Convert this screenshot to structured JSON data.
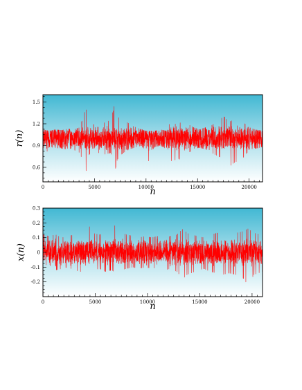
{
  "chart_data": [
    {
      "type": "line",
      "id": "top",
      "title": "",
      "xlabel": "n",
      "ylabel": "r(n)",
      "xlim": [
        0,
        21300
      ],
      "ylim": [
        0.4,
        1.6
      ],
      "x_ticks": [
        0,
        5000,
        10000,
        15000,
        20000
      ],
      "x_tick_labels": [
        "0",
        "5000",
        "10000",
        "15000",
        "20000"
      ],
      "y_ticks": [
        0.6,
        0.9,
        1.2,
        1.5
      ],
      "y_tick_labels": [
        "0.6",
        "0.9",
        "1.2",
        "1.5"
      ],
      "grid": false,
      "legend": "none",
      "series": [
        {
          "color": "#ff0000",
          "mean": 1.0,
          "typical_range": [
            0.85,
            1.15
          ],
          "x": [
            0,
            600,
            1200,
            1800,
            2400,
            3000,
            3600,
            4000,
            4200,
            4400,
            4800,
            5400,
            6000,
            6600,
            7000,
            7200,
            7400,
            7800,
            8400,
            9000,
            9600,
            10000,
            10800,
            11400,
            12000,
            12400,
            12600,
            12800,
            13200,
            13600,
            14000,
            14600,
            15200,
            15800,
            16400,
            17000,
            17600,
            18000,
            18400,
            19000,
            19600,
            20000,
            20600,
            21300
          ],
          "y_high": [
            1.12,
            1.1,
            1.12,
            1.11,
            1.13,
            1.12,
            1.15,
            1.35,
            1.4,
            1.25,
            1.2,
            1.15,
            1.22,
            1.25,
            1.5,
            1.3,
            1.28,
            1.25,
            1.2,
            1.15,
            1.12,
            1.1,
            1.1,
            1.12,
            1.1,
            1.25,
            1.45,
            1.2,
            1.18,
            1.3,
            1.2,
            1.15,
            1.12,
            1.15,
            1.18,
            1.25,
            1.3,
            1.22,
            1.25,
            1.3,
            1.2,
            1.15,
            1.12,
            1.1
          ],
          "y_low": [
            0.7,
            0.88,
            0.87,
            0.86,
            0.85,
            0.84,
            0.8,
            0.6,
            0.55,
            0.75,
            0.85,
            0.8,
            0.78,
            0.8,
            0.55,
            0.7,
            0.75,
            0.8,
            0.85,
            0.88,
            0.9,
            0.6,
            0.88,
            0.9,
            0.85,
            0.75,
            0.55,
            0.7,
            0.72,
            0.62,
            0.78,
            0.86,
            0.87,
            0.85,
            0.8,
            0.75,
            0.72,
            0.6,
            0.65,
            0.7,
            0.75,
            0.85,
            0.86,
            0.88
          ]
        }
      ]
    },
    {
      "type": "line",
      "id": "bottom",
      "title": "",
      "xlabel": "n",
      "ylabel": "x(n)",
      "xlim": [
        0,
        21000
      ],
      "ylim": [
        -0.3,
        0.3
      ],
      "x_ticks": [
        0,
        5000,
        10000,
        15000,
        20000
      ],
      "x_tick_labels": [
        "0",
        "5000",
        "10000",
        "15000",
        "20000"
      ],
      "y_ticks": [
        -0.2,
        -0.1,
        0,
        0.1,
        0.2,
        0.3
      ],
      "y_tick_labels": [
        "-0.2",
        "-0.1",
        "0",
        "0.1",
        "0.2",
        "0.3"
      ],
      "grid": false,
      "legend": "none",
      "series": [
        {
          "color": "#ff0000",
          "mean": 0.0,
          "typical_range": [
            -0.08,
            0.08
          ],
          "x": [
            0,
            600,
            1200,
            1800,
            2400,
            3000,
            3600,
            4000,
            4200,
            4400,
            4800,
            5400,
            6000,
            6600,
            7000,
            7400,
            8000,
            8600,
            9200,
            9800,
            10400,
            11000,
            11600,
            12200,
            12800,
            13400,
            13800,
            14200,
            14800,
            15400,
            16000,
            16600,
            17200,
            17800,
            18400,
            19000,
            19600,
            20200,
            21000
          ],
          "y_high": [
            0.12,
            0.11,
            0.12,
            0.1,
            0.11,
            0.12,
            0.13,
            0.15,
            0.26,
            0.18,
            0.13,
            0.12,
            0.13,
            0.14,
            0.2,
            0.14,
            0.12,
            0.11,
            0.1,
            0.11,
            0.1,
            0.11,
            0.1,
            0.11,
            0.12,
            0.16,
            0.13,
            0.12,
            0.11,
            0.1,
            0.12,
            0.13,
            0.14,
            0.12,
            0.13,
            0.14,
            0.16,
            0.13,
            0.12
          ],
          "y_low": [
            -0.11,
            -0.1,
            -0.12,
            -0.11,
            -0.1,
            -0.12,
            -0.13,
            -0.16,
            -0.18,
            -0.14,
            -0.12,
            -0.11,
            -0.13,
            -0.12,
            -0.14,
            -0.12,
            -0.11,
            -0.1,
            -0.11,
            -0.1,
            -0.11,
            -0.1,
            -0.12,
            -0.11,
            -0.13,
            -0.18,
            -0.15,
            -0.14,
            -0.12,
            -0.11,
            -0.13,
            -0.14,
            -0.15,
            -0.14,
            -0.15,
            -0.16,
            -0.22,
            -0.15,
            -0.13
          ]
        }
      ]
    }
  ]
}
